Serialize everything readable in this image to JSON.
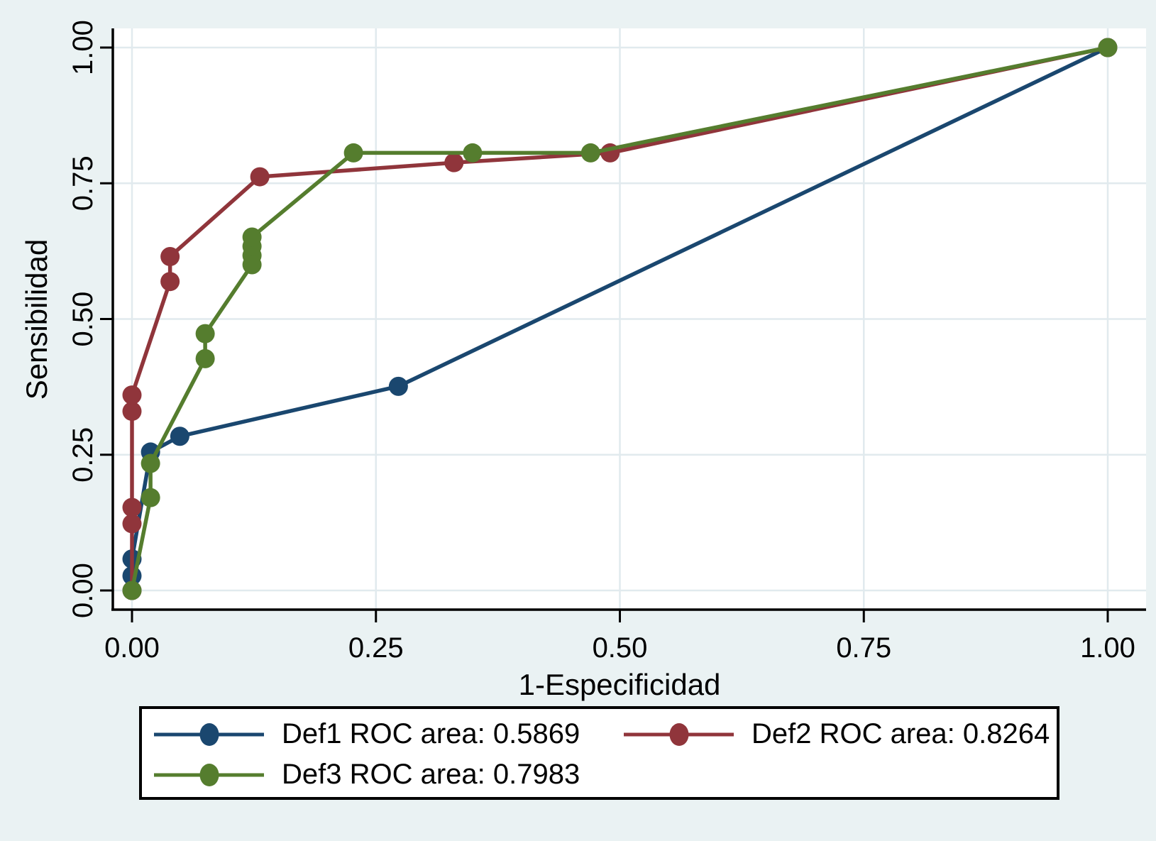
{
  "chart_data": {
    "type": "line",
    "title": "",
    "xlabel": "1-Especificidad",
    "ylabel": "Sensibilidad",
    "xlim": [
      0,
      1
    ],
    "ylim": [
      0,
      1
    ],
    "grid": true,
    "legend_position": "bottom",
    "x_tick_values": [
      0,
      0.25,
      0.5,
      0.75,
      1
    ],
    "x_tick_labels": [
      "0.00",
      "0.25",
      "0.50",
      "0.75",
      "1.00"
    ],
    "y_tick_values": [
      0,
      0.25,
      0.5,
      0.75,
      1
    ],
    "y_tick_labels": [
      "0.00",
      "0.25",
      "0.50",
      "0.75",
      "1.00"
    ],
    "series": [
      {
        "name": "Def1",
        "legend_label": "Def1 ROC area: 0.5869",
        "color": "#1a476f",
        "points": [
          [
            0,
            0
          ],
          [
            0,
            0.027
          ],
          [
            0,
            0.058
          ],
          [
            0.019,
            0.255
          ],
          [
            0.049,
            0.284
          ],
          [
            0.273,
            0.376
          ],
          [
            1,
            1
          ]
        ]
      },
      {
        "name": "Def2",
        "legend_label": "Def2 ROC area: 0.8264",
        "color": "#90353b",
        "points": [
          [
            0,
            0
          ],
          [
            0,
            0.123
          ],
          [
            0,
            0.153
          ],
          [
            0,
            0.33
          ],
          [
            0,
            0.36
          ],
          [
            0.039,
            0.569
          ],
          [
            0.039,
            0.615
          ],
          [
            0.131,
            0.762
          ],
          [
            0.33,
            0.788
          ],
          [
            0.49,
            0.806
          ],
          [
            1,
            1
          ]
        ]
      },
      {
        "name": "Def3",
        "legend_label": "Def3 ROC area: 0.7983",
        "color": "#557d2e",
        "points": [
          [
            0,
            0
          ],
          [
            0.019,
            0.171
          ],
          [
            0.019,
            0.234
          ],
          [
            0.075,
            0.427
          ],
          [
            0.075,
            0.473
          ],
          [
            0.123,
            0.6
          ],
          [
            0.123,
            0.617
          ],
          [
            0.123,
            0.634
          ],
          [
            0.123,
            0.651
          ],
          [
            0.227,
            0.806
          ],
          [
            0.349,
            0.806
          ],
          [
            0.47,
            0.806
          ],
          [
            1,
            1
          ]
        ]
      }
    ],
    "style": {
      "background_color": "#eaf2f3",
      "plot_background_color": "#ffffff",
      "grid_color": "#e1eaee",
      "axis_color": "#000000"
    }
  }
}
